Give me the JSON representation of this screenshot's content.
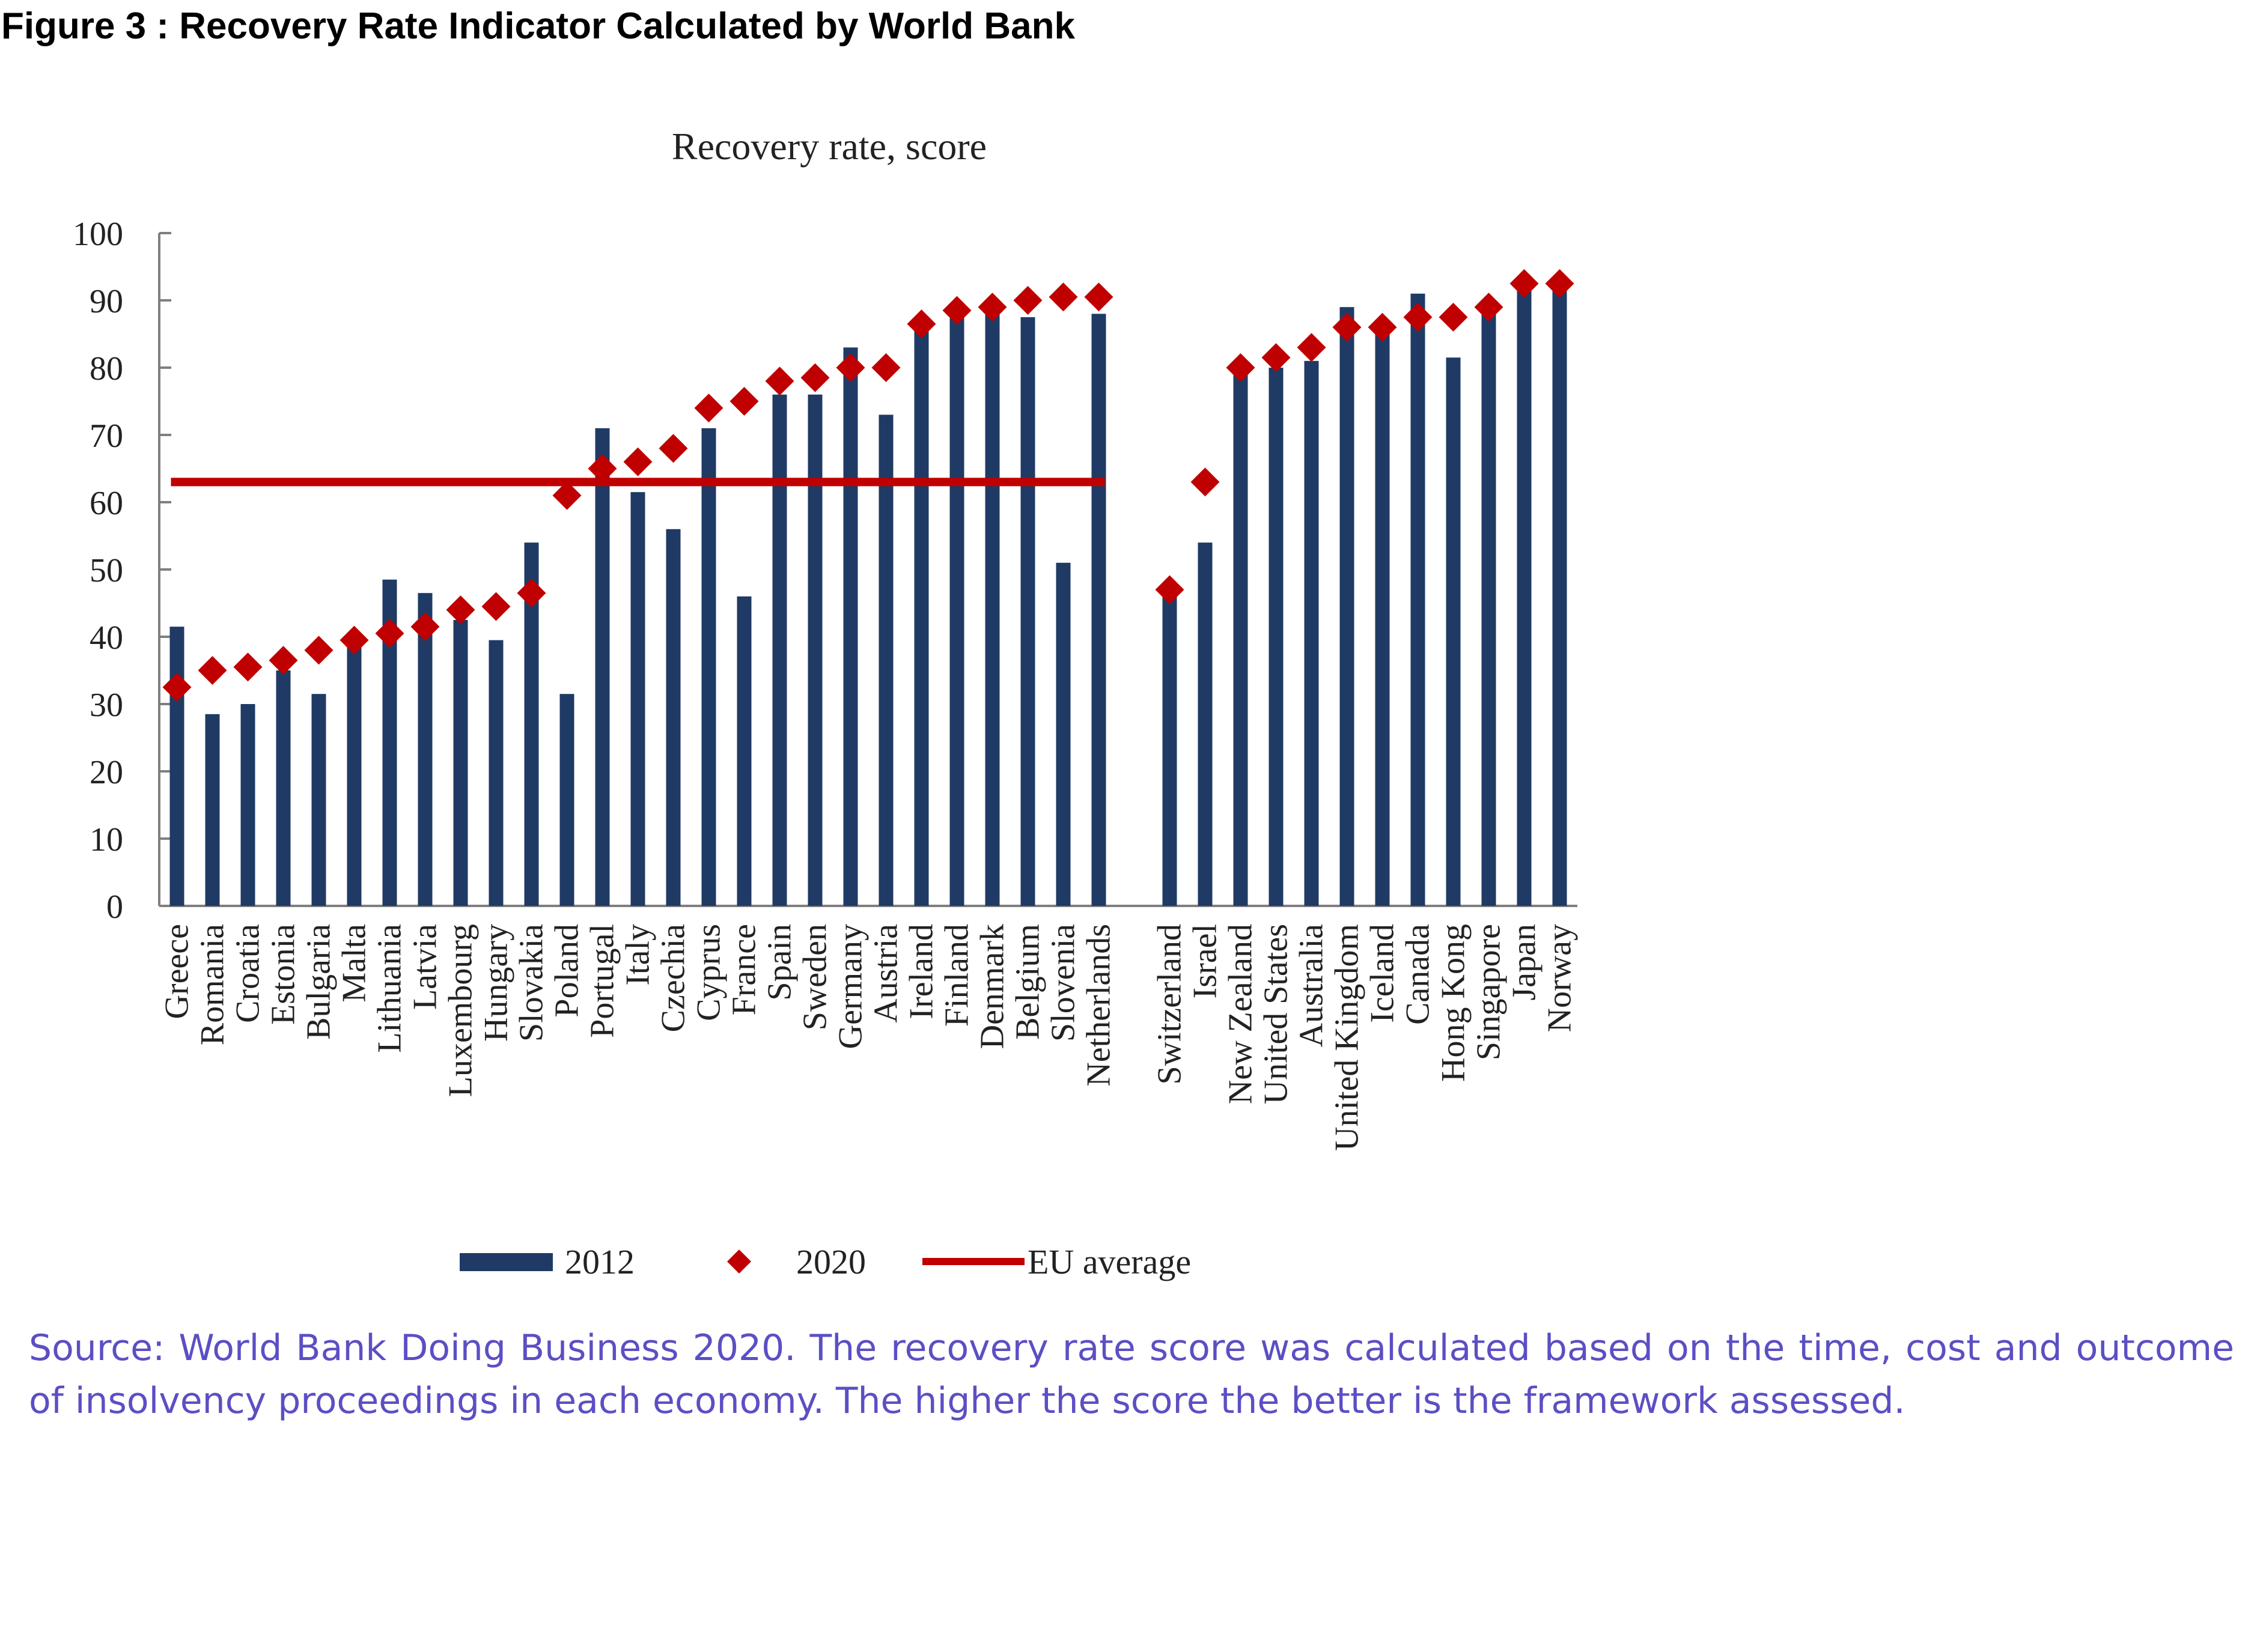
{
  "figure_title": "Figure 3 : Recovery Rate Indicator Calculated by World Bank",
  "source_note": "Source: World Bank Doing Business 2020. The recovery rate score was calculated based on the time, cost and outcome of insolvency proceedings in each economy. The higher the score the better is the framework assessed.",
  "colors": {
    "bar": "#1f3a64",
    "marker": "#c00000",
    "eu_line": "#c00000"
  },
  "chart_data": {
    "type": "bar",
    "title": "Recovery rate, score",
    "xlabel": "",
    "ylabel": "",
    "ylim": [
      0,
      100
    ],
    "yticks": [
      0,
      10,
      20,
      30,
      40,
      50,
      60,
      70,
      80,
      90,
      100
    ],
    "categories": [
      "Greece",
      "Romania",
      "Croatia",
      "Estonia",
      "Bulgaria",
      "Malta",
      "Lithuania",
      "Latvia",
      "Luxembourg",
      "Hungary",
      "Slovakia",
      "Poland",
      "Portugal",
      "Italy",
      "Czechia",
      "Cyprus",
      "France",
      "Spain",
      "Sweden",
      "Germany",
      "Austria",
      "Ireland",
      "Finland",
      "Denmark",
      "Belgium",
      "Slovenia",
      "Netherlands",
      "",
      "Switzerland",
      "Israel",
      "New Zealand",
      "United States",
      "Australia",
      "United Kingdom",
      "Iceland",
      "Canada",
      "Hong Kong",
      "Singapore",
      "Japan",
      "Norway"
    ],
    "series": [
      {
        "name": "2012",
        "kind": "bar",
        "values": [
          41.5,
          28.5,
          30,
          35,
          31.5,
          38.5,
          48.5,
          46.5,
          42.5,
          39.5,
          54,
          31.5,
          71,
          61.5,
          56,
          71,
          46,
          76,
          76,
          83,
          73,
          86,
          87.5,
          88,
          87.5,
          51,
          88,
          null,
          46.5,
          54,
          79,
          80,
          81,
          89,
          85,
          91,
          81.5,
          88,
          91.5,
          91.5
        ]
      },
      {
        "name": "2020",
        "kind": "marker",
        "values": [
          32.5,
          35,
          35.5,
          36.5,
          38,
          39.5,
          40.5,
          41.5,
          44,
          44.5,
          46.5,
          61,
          65,
          66,
          68,
          74,
          75,
          78,
          78.5,
          80,
          80,
          86.5,
          88.5,
          89,
          90,
          90.5,
          90.5,
          null,
          47,
          63,
          80,
          81.5,
          83,
          86,
          86,
          87.5,
          87.5,
          89,
          92.5,
          92.5
        ]
      }
    ],
    "reference_line": {
      "name": "EU average",
      "value": 63,
      "spans": [
        "Greece",
        "Netherlands"
      ]
    },
    "legend": {
      "placement": "bottom",
      "items": [
        "2012",
        "2020",
        "EU average"
      ]
    }
  }
}
